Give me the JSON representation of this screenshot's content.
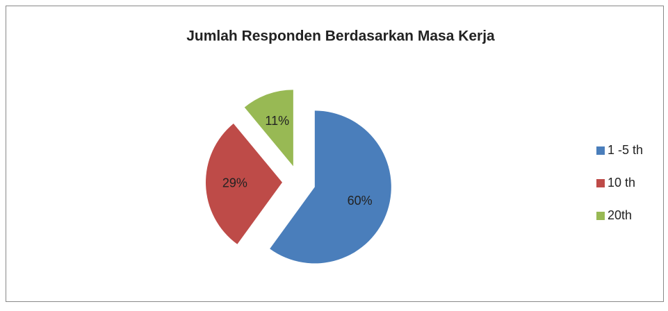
{
  "chart_data": {
    "type": "pie",
    "title": "Jumlah Responden Berdasarkan Masa Kerja",
    "categories": [
      "1 -5 th",
      "10 th",
      "20th"
    ],
    "values": [
      60,
      29,
      11
    ],
    "value_labels": [
      "60%",
      "29%",
      "11%"
    ],
    "colors": [
      "#4a7ebb",
      "#be4b48",
      "#98b954"
    ],
    "legend": "right"
  }
}
